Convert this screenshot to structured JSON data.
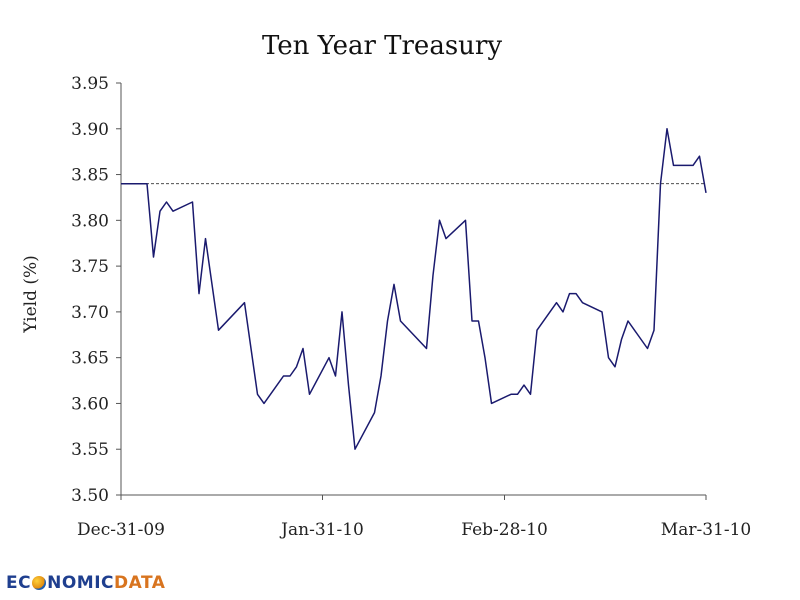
{
  "chart_data": {
    "type": "line",
    "title": "Ten Year Treasury",
    "ylabel": "Yield (%)",
    "xlabel": "",
    "ylim": [
      3.5,
      3.95
    ],
    "yticks": [
      "3.50",
      "3.55",
      "3.60",
      "3.65",
      "3.70",
      "3.75",
      "3.80",
      "3.85",
      "3.90",
      "3.95"
    ],
    "xtick_labels": [
      "Dec-31-09",
      "Jan-31-10",
      "Feb-28-10",
      "Mar-31-10"
    ],
    "xtick_dates": [
      "2009-12-31",
      "2010-01-31",
      "2010-02-28",
      "2010-03-31"
    ],
    "reference_line": {
      "y": 3.84,
      "style": "dashed"
    },
    "grid": false,
    "series": [
      {
        "color": "#1a1a6e",
        "points": [
          [
            "2009-12-31",
            3.84
          ],
          [
            "2010-01-04",
            3.84
          ],
          [
            "2010-01-05",
            3.76
          ],
          [
            "2010-01-06",
            3.81
          ],
          [
            "2010-01-07",
            3.82
          ],
          [
            "2010-01-08",
            3.81
          ],
          [
            "2010-01-11",
            3.82
          ],
          [
            "2010-01-12",
            3.72
          ],
          [
            "2010-01-13",
            3.78
          ],
          [
            "2010-01-14",
            3.73
          ],
          [
            "2010-01-15",
            3.68
          ],
          [
            "2010-01-19",
            3.71
          ],
          [
            "2010-01-20",
            3.66
          ],
          [
            "2010-01-21",
            3.61
          ],
          [
            "2010-01-22",
            3.6
          ],
          [
            "2010-01-25",
            3.63
          ],
          [
            "2010-01-26",
            3.63
          ],
          [
            "2010-01-27",
            3.64
          ],
          [
            "2010-01-28",
            3.66
          ],
          [
            "2010-01-29",
            3.61
          ],
          [
            "2010-02-01",
            3.65
          ],
          [
            "2010-02-02",
            3.63
          ],
          [
            "2010-02-03",
            3.7
          ],
          [
            "2010-02-04",
            3.62
          ],
          [
            "2010-02-05",
            3.55
          ],
          [
            "2010-02-08",
            3.59
          ],
          [
            "2010-02-09",
            3.63
          ],
          [
            "2010-02-10",
            3.69
          ],
          [
            "2010-02-11",
            3.73
          ],
          [
            "2010-02-12",
            3.69
          ],
          [
            "2010-02-16",
            3.66
          ],
          [
            "2010-02-17",
            3.74
          ],
          [
            "2010-02-18",
            3.8
          ],
          [
            "2010-02-19",
            3.78
          ],
          [
            "2010-02-22",
            3.8
          ],
          [
            "2010-02-23",
            3.69
          ],
          [
            "2010-02-24",
            3.69
          ],
          [
            "2010-02-25",
            3.65
          ],
          [
            "2010-02-26",
            3.6
          ],
          [
            "2010-03-01",
            3.61
          ],
          [
            "2010-03-02",
            3.61
          ],
          [
            "2010-03-03",
            3.62
          ],
          [
            "2010-03-04",
            3.61
          ],
          [
            "2010-03-05",
            3.68
          ],
          [
            "2010-03-08",
            3.71
          ],
          [
            "2010-03-09",
            3.7
          ],
          [
            "2010-03-10",
            3.72
          ],
          [
            "2010-03-11",
            3.72
          ],
          [
            "2010-03-12",
            3.71
          ],
          [
            "2010-03-15",
            3.7
          ],
          [
            "2010-03-16",
            3.65
          ],
          [
            "2010-03-17",
            3.64
          ],
          [
            "2010-03-18",
            3.67
          ],
          [
            "2010-03-19",
            3.69
          ],
          [
            "2010-03-22",
            3.66
          ],
          [
            "2010-03-23",
            3.68
          ],
          [
            "2010-03-24",
            3.84
          ],
          [
            "2010-03-25",
            3.9
          ],
          [
            "2010-03-26",
            3.86
          ],
          [
            "2010-03-29",
            3.86
          ],
          [
            "2010-03-30",
            3.87
          ],
          [
            "2010-03-31",
            3.83
          ]
        ]
      }
    ]
  },
  "logo": {
    "part1": "EC",
    "part2": "NOMIC",
    "part3": "DATA"
  }
}
